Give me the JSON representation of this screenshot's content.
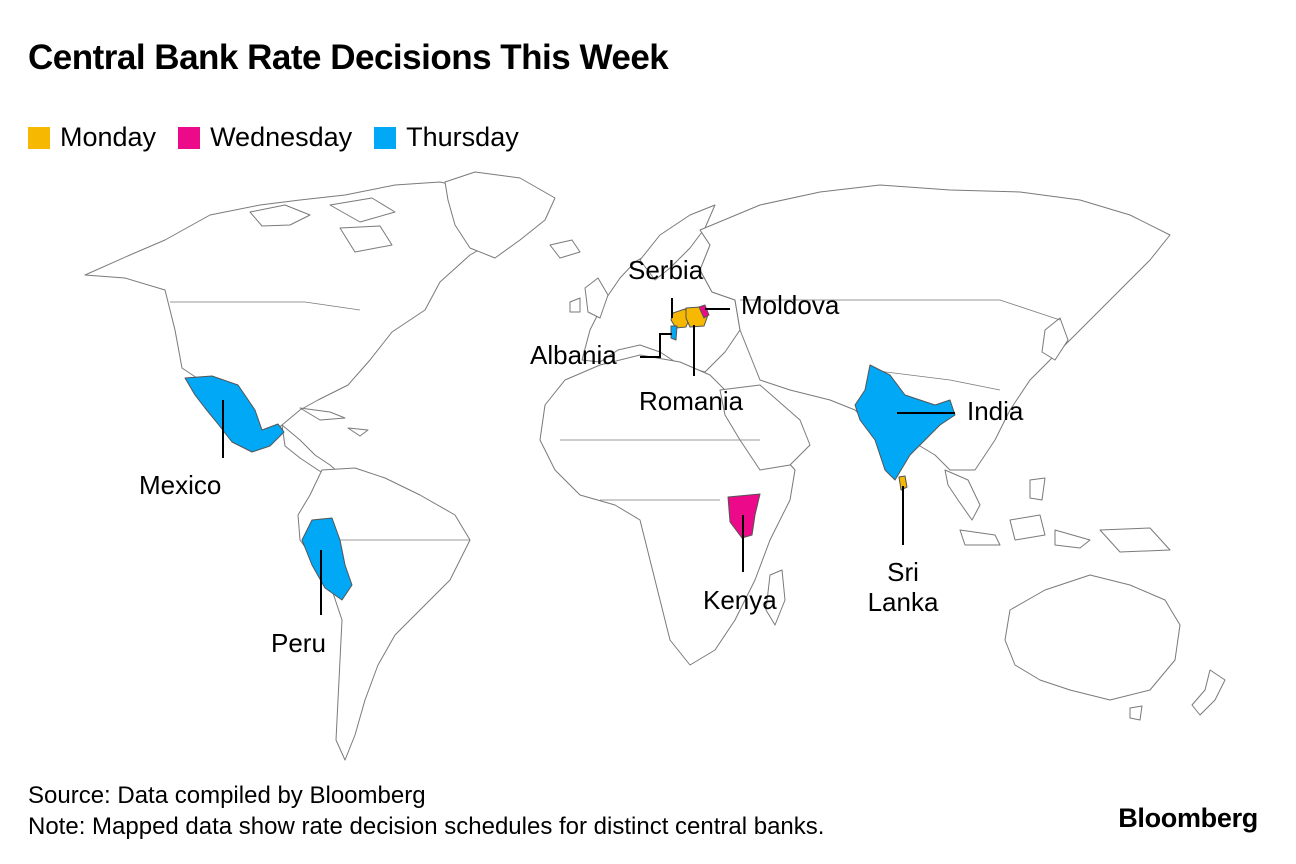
{
  "title": "Central Bank Rate Decisions This Week",
  "legend": [
    {
      "label": "Monday",
      "color": "#F7B801"
    },
    {
      "label": "Wednesday",
      "color": "#EC0A8A"
    },
    {
      "label": "Thursday",
      "color": "#00A8F5"
    }
  ],
  "countries": {
    "serbia": {
      "label": "Serbia",
      "day": "Monday"
    },
    "moldova": {
      "label": "Moldova",
      "day": "Wednesday"
    },
    "albania": {
      "label": "Albania",
      "day": "Thursday"
    },
    "romania": {
      "label": "Romania",
      "day": "Monday"
    },
    "india": {
      "label": "India",
      "day": "Thursday"
    },
    "mexico": {
      "label": "Mexico",
      "day": "Thursday"
    },
    "kenya": {
      "label": "Kenya",
      "day": "Wednesday"
    },
    "sri_lanka": {
      "label_line1": "Sri",
      "label_line2": "Lanka",
      "day": "Monday"
    },
    "peru": {
      "label": "Peru",
      "day": "Thursday"
    }
  },
  "footer": {
    "source": "Source: Data compiled by Bloomberg",
    "note": "Note: Mapped data show rate decision schedules for distinct central banks."
  },
  "brand": "Bloomberg"
}
